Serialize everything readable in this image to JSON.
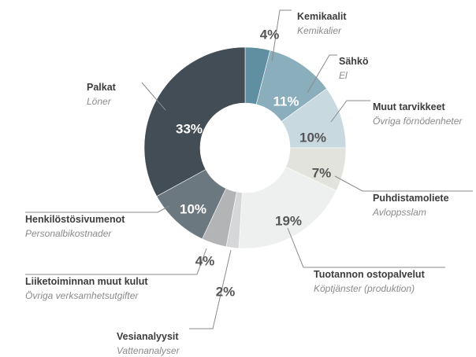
{
  "chart_data": {
    "type": "pie",
    "categories": [
      "Kemikaalit",
      "Sähkö",
      "Muut tarvikkeet",
      "Puhdistamoliete",
      "Tuotannon ostopalvelut",
      "Vesianalyysit",
      "Liiketoiminnan muut kulut",
      "Henkilöstösivumenot",
      "Palkat"
    ],
    "sublabels": [
      "Kemikalier",
      "El",
      "Övriga förnödenheter",
      "Avloppsslam",
      "Köptjänster (produktion)",
      "Vattenanalyser",
      "Övriga verksamhetsutgifter",
      "Personalbikostnader",
      "Löner"
    ],
    "values": [
      4,
      11,
      10,
      7,
      19,
      2,
      4,
      10,
      33
    ],
    "value_labels": [
      "4%",
      "11%",
      "10%",
      "7%",
      "19%",
      "2%",
      "4%",
      "10%",
      "33%"
    ],
    "colors": [
      "#5f8fa0",
      "#8aaebb",
      "#c9d9e0",
      "#e2e3dc",
      "#eef0f0",
      "#d6d7d8",
      "#b2b4b6",
      "#6b7880",
      "#434d55"
    ]
  }
}
